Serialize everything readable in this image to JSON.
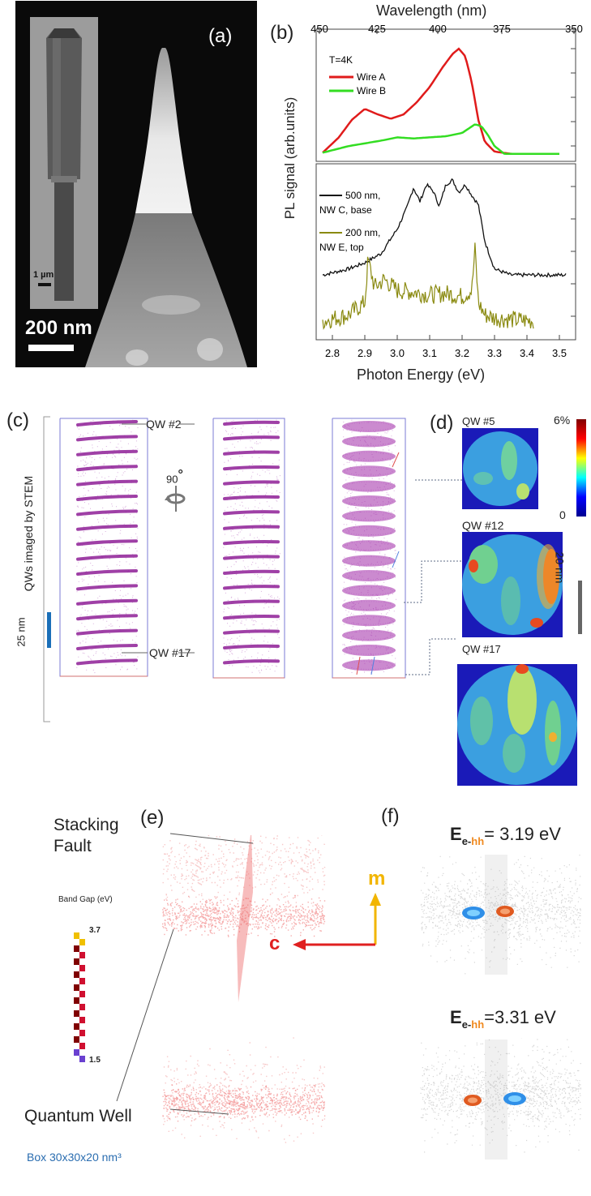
{
  "panels": {
    "a": {
      "label": "(a)",
      "scale_main": "200 nm",
      "scale_inset": "1 µm"
    },
    "b": {
      "label": "(b)",
      "top_axis_title": "Wavelength (nm)",
      "top_ticks": [
        "450",
        "425",
        "400",
        "375",
        "350"
      ],
      "bottom_axis_title": "Photon Energy (eV)",
      "bottom_ticks": [
        "2.8",
        "2.9",
        "3.0",
        "3.1",
        "3.2",
        "3.3",
        "3.4",
        "3.5"
      ],
      "ylabel": "PL signal (arb.units)",
      "upper_temp": "T=4K",
      "legend_upper": [
        "Wire A",
        "Wire B"
      ],
      "legend_lower": [
        {
          "line1": "500 nm,",
          "line2": "NW C, base"
        },
        {
          "line1": "200 nm,",
          "line2": "NW E, top"
        }
      ],
      "colors": {
        "wireA": "#e01b1b",
        "wireB": "#33dd22",
        "nwC": "#111111",
        "nwE": "#8a8a10"
      }
    },
    "c": {
      "label": "(c)",
      "side_label": "QWs imaged by STEM",
      "scale": "25 nm",
      "qw_top": "QW #2",
      "qw_bottom": "QW #17",
      "rotation": "90",
      "rotation_unit": "°"
    },
    "d": {
      "label": "(d)",
      "maps": [
        "QW #5",
        "QW #12",
        "QW #17"
      ],
      "colorbar_max": "6%",
      "colorbar_min": "0",
      "scale": "20 nm"
    },
    "e": {
      "label": "(e)",
      "stacking_fault_line1": "Stacking",
      "stacking_fault_line2": "Fault",
      "band_gap_title": "Band Gap (eV)",
      "band_gap_max": "3.7",
      "band_gap_min": "1.5",
      "quantum_well": "Quantum Well",
      "box": "Box 30x30x20 nm³",
      "axis_m": "m",
      "axis_c": "c"
    },
    "f": {
      "label": "(f)",
      "e_symbol": "E",
      "sub_e": "e-",
      "sub_hh": "hh",
      "top_value": "= 3.19 eV",
      "bottom_value": "=3.31 eV"
    }
  },
  "chart_data": [
    {
      "type": "line",
      "title": "",
      "xlabel": "Photon Energy (eV)",
      "ylabel": "PL signal (arb.units)",
      "xlim": [
        2.75,
        3.55
      ],
      "series": [
        {
          "name": "Wire A",
          "x": [
            2.77,
            2.82,
            2.86,
            2.9,
            2.94,
            2.98,
            3.02,
            3.06,
            3.1,
            3.14,
            3.17,
            3.19,
            3.21,
            3.23,
            3.25,
            3.27,
            3.3,
            3.35,
            3.5
          ],
          "y": [
            0.02,
            0.16,
            0.32,
            0.42,
            0.37,
            0.33,
            0.37,
            0.48,
            0.62,
            0.8,
            0.92,
            0.97,
            0.9,
            0.66,
            0.32,
            0.12,
            0.03,
            0.01,
            0.01
          ]
        },
        {
          "name": "Wire B",
          "x": [
            2.77,
            2.85,
            2.95,
            3.0,
            3.05,
            3.1,
            3.15,
            3.2,
            3.24,
            3.26,
            3.28,
            3.3,
            3.33,
            3.5
          ],
          "y": [
            0.02,
            0.08,
            0.13,
            0.16,
            0.15,
            0.16,
            0.17,
            0.2,
            0.28,
            0.26,
            0.18,
            0.08,
            0.01,
            0.01
          ]
        },
        {
          "name": "500 nm, NW C, base",
          "x": [
            2.77,
            2.85,
            2.9,
            2.95,
            3.0,
            3.03,
            3.05,
            3.07,
            3.09,
            3.11,
            3.13,
            3.15,
            3.17,
            3.19,
            3.21,
            3.23,
            3.25,
            3.27,
            3.3,
            3.35,
            3.52
          ],
          "y": [
            0.38,
            0.42,
            0.46,
            0.52,
            0.68,
            0.82,
            0.95,
            0.86,
            0.97,
            0.93,
            0.83,
            0.97,
            1.0,
            0.92,
            0.97,
            0.9,
            0.84,
            0.6,
            0.42,
            0.38,
            0.38
          ]
        },
        {
          "name": "200 nm, NW E, top",
          "x": [
            2.77,
            2.85,
            2.9,
            2.91,
            2.93,
            2.96,
            3.0,
            3.05,
            3.1,
            3.15,
            3.2,
            3.23,
            3.24,
            3.25,
            3.27,
            3.3,
            3.35,
            3.42
          ],
          "y": [
            0.08,
            0.12,
            0.2,
            0.48,
            0.3,
            0.35,
            0.28,
            0.27,
            0.25,
            0.26,
            0.24,
            0.28,
            0.55,
            0.2,
            0.12,
            0.1,
            0.09,
            0.08
          ]
        }
      ]
    }
  ]
}
